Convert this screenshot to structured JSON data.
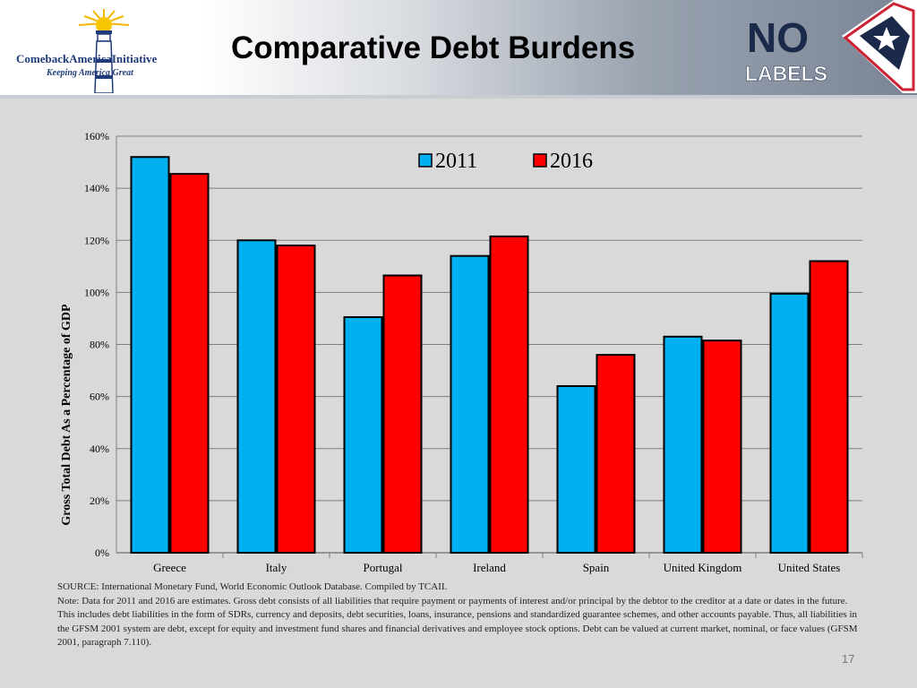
{
  "header": {
    "title": "Comparative Debt Burdens",
    "logo_left": {
      "name": "ComebackAmericaInitiative",
      "tagline": "Keeping America Great"
    },
    "logo_right": {
      "line1": "NO",
      "line2": "LABELS"
    },
    "colors": {
      "brand_blue": "#1f3b7a",
      "nolabels_navy": "#1b2a4a",
      "nolabels_red": "#cc2233"
    }
  },
  "chart_data": {
    "type": "bar",
    "categories": [
      "Greece",
      "Italy",
      "Portugal",
      "Ireland",
      "Spain",
      "United Kingdom",
      "United States"
    ],
    "series": [
      {
        "name": "2011",
        "color": "#00b0f0",
        "values": [
          152,
          120,
          90.5,
          114,
          64,
          83,
          99.5
        ]
      },
      {
        "name": "2016",
        "color": "#ff0000",
        "values": [
          145.5,
          118,
          106.5,
          121.5,
          76,
          81.5,
          112
        ]
      }
    ],
    "ylabel": "Gross Total Debt As a Percentage of GDP",
    "ylim": [
      0,
      160
    ],
    "yticks": [
      "0%",
      "20%",
      "40%",
      "60%",
      "80%",
      "100%",
      "120%",
      "140%",
      "160%"
    ],
    "grid": true,
    "legend_position": "top-center"
  },
  "footer": {
    "source": "SOURCE: International Monetary Fund, World Economic Outlook Database. Compiled by TCAII.",
    "note": "Note: Data for 2011 and 2016 are estimates. Gross debt consists of all liabilities that require payment or payments of interest and/or principal by the debtor to the creditor at a date or dates in the future. This includes debt liabilities in the form of SDRs, currency and deposits, debt securities, loans, insurance, pensions and standardized guarantee schemes, and other accounts payable. Thus, all liabilities in the GFSM 2001 system are debt, except for equity and investment fund shares and financial derivatives and employee stock options. Debt can be valued at current market, nominal, or face values (GFSM 2001, paragraph 7.110).",
    "page_number": "17"
  }
}
